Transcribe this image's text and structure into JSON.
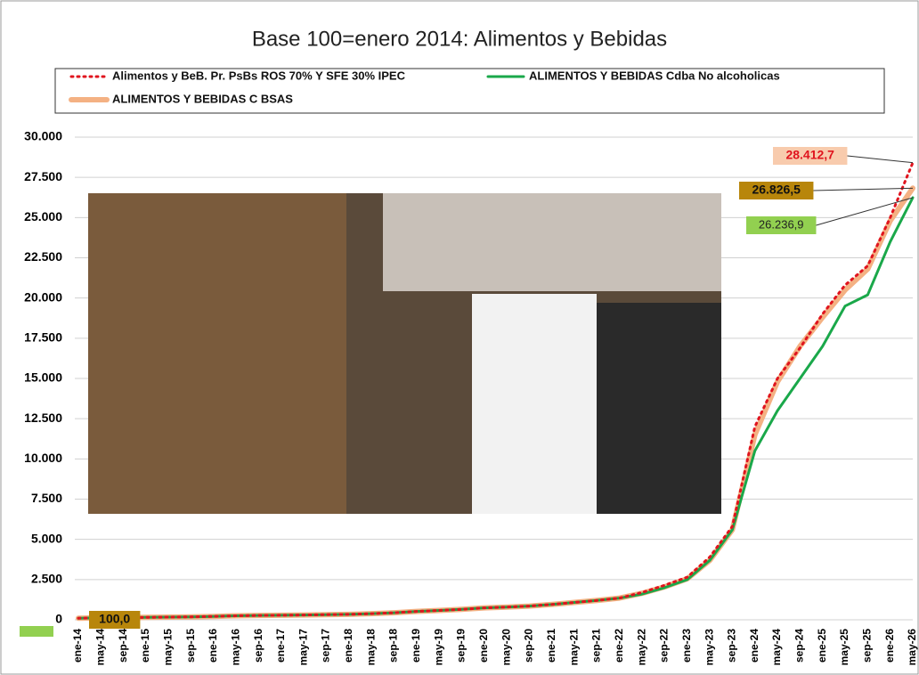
{
  "chart_data": {
    "type": "line",
    "title": "Base 100=enero 2014: Alimentos y Bebidas",
    "categories": [
      "ene-14",
      "may-14",
      "sep-14",
      "ene-15",
      "may-15",
      "sep-15",
      "ene-16",
      "may-16",
      "sep-16",
      "ene-17",
      "may-17",
      "sep-17",
      "ene-18",
      "may-18",
      "sep-18",
      "ene-19",
      "may-19",
      "sep-19",
      "ene-20",
      "may-20",
      "sep-20",
      "ene-21",
      "may-21",
      "sep-21",
      "ene-22",
      "may-22",
      "sep-22",
      "ene-23",
      "may-23",
      "sep-23",
      "ene-24",
      "may-24",
      "sep-24",
      "ene-25",
      "may-25",
      "sep-25",
      "ene-26",
      "may-26"
    ],
    "series": [
      {
        "name": "Alimentos y BeB. Pr. PsBs ROS 70% Y SFE 30% IPEC",
        "color": "#e0141e",
        "values": [
          100,
          120,
          135,
          150,
          165,
          180,
          210,
          250,
          270,
          285,
          300,
          320,
          340,
          380,
          440,
          520,
          580,
          650,
          740,
          790,
          850,
          950,
          1080,
          1200,
          1350,
          1700,
          2150,
          2650,
          3900,
          5800,
          12000,
          15000,
          16900,
          19000,
          20800,
          22000,
          25000,
          28412.7
        ],
        "value_labels": [
          null,
          null,
          null,
          null,
          null,
          null,
          null,
          null,
          null,
          null,
          null,
          null,
          null,
          null,
          null,
          null,
          null,
          null,
          null,
          null,
          null,
          null,
          null,
          null,
          null,
          null,
          null,
          null,
          null,
          null,
          null,
          null,
          null,
          null,
          null,
          null,
          null,
          "28.412,7"
        ]
      },
      {
        "name": "ALIMENTOS Y BEBIDAS Cdba No alcoholicas",
        "color": "#1aa84a",
        "values": [
          100,
          120,
          135,
          150,
          165,
          180,
          210,
          250,
          270,
          285,
          300,
          320,
          340,
          380,
          440,
          520,
          580,
          650,
          740,
          790,
          850,
          950,
          1080,
          1200,
          1350,
          1600,
          2000,
          2500,
          3700,
          5600,
          10500,
          13000,
          15000,
          17000,
          19500,
          20200,
          23500,
          26236.9
        ],
        "value_labels": [
          null,
          null,
          null,
          null,
          null,
          null,
          null,
          null,
          null,
          null,
          null,
          null,
          null,
          null,
          null,
          null,
          null,
          null,
          null,
          null,
          null,
          null,
          null,
          null,
          null,
          null,
          null,
          null,
          null,
          null,
          null,
          null,
          null,
          null,
          null,
          null,
          null,
          "26.236,9"
        ]
      },
      {
        "name": "ALIMENTOS Y BEBIDAS C BSAS",
        "color": "#f4b183",
        "values": [
          100,
          120,
          135,
          150,
          165,
          180,
          210,
          250,
          270,
          285,
          300,
          320,
          340,
          380,
          440,
          520,
          580,
          650,
          740,
          790,
          850,
          950,
          1080,
          1200,
          1350,
          1650,
          2050,
          2550,
          3700,
          5600,
          11500,
          14800,
          17000,
          18800,
          20500,
          21800,
          24800,
          26826.5
        ],
        "value_labels": [
          "100,0",
          null,
          null,
          null,
          null,
          null,
          null,
          null,
          null,
          null,
          null,
          null,
          null,
          null,
          null,
          null,
          null,
          null,
          null,
          null,
          null,
          null,
          null,
          null,
          null,
          null,
          null,
          null,
          null,
          null,
          null,
          null,
          null,
          null,
          null,
          null,
          null,
          "26.826,5"
        ]
      }
    ],
    "ylim": [
      0,
      30000
    ],
    "yticks": [
      {
        "value": 0,
        "label": "0"
      },
      {
        "value": 2500,
        "label": "2.500"
      },
      {
        "value": 5000,
        "label": "5.000"
      },
      {
        "value": 7500,
        "label": "7.500"
      },
      {
        "value": 10000,
        "label": "10.000"
      },
      {
        "value": 12500,
        "label": "12.500"
      },
      {
        "value": 15000,
        "label": "15.000"
      },
      {
        "value": 17500,
        "label": "17.500"
      },
      {
        "value": 20000,
        "label": "20.000"
      },
      {
        "value": 22500,
        "label": "22.500"
      },
      {
        "value": 25000,
        "label": "25.000"
      },
      {
        "value": 27500,
        "label": "27.500"
      },
      {
        "value": 30000,
        "label": "30.000"
      }
    ],
    "grid": true
  }
}
